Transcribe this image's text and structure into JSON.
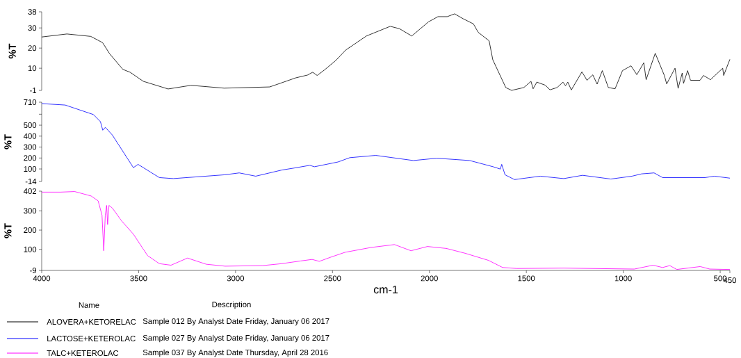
{
  "chart_data": [
    {
      "type": "line",
      "ylabel": "%T",
      "xlim": [
        4000,
        450
      ],
      "ylim": [
        -1,
        38
      ],
      "yticks": [
        38,
        30,
        20,
        10,
        -1
      ],
      "tick_labels": "y",
      "legend": "bottom",
      "legend_title": "Name",
      "annotations": [
        "Description",
        "Sample 012 By Analyst Date Friday, January 06 2017"
      ],
      "series": [
        {
          "name": "ALOVERA+KETORELAC",
          "color": "#000000",
          "x": [
            4000,
            3870,
            3747,
            3686,
            3649,
            3581,
            3544,
            3476,
            3348,
            3230,
            3059,
            2824,
            2752,
            2690,
            2629,
            2602,
            2579,
            2542,
            2481,
            2432,
            2325,
            2202,
            2154,
            2091,
            2005,
            1956,
            1908,
            1870,
            1827,
            1773,
            1748,
            1692,
            1673,
            1606,
            1576,
            1513,
            1476,
            1465,
            1446,
            1403,
            1378,
            1341,
            1311,
            1298,
            1286,
            1268,
            1213,
            1187,
            1157,
            1135,
            1108,
            1077,
            1042,
            1004,
            960,
            930,
            894,
            882,
            835,
            788,
            776,
            733,
            717,
            696,
            689,
            668,
            653,
            604,
            586,
            550,
            487,
            482,
            450
          ],
          "values": [
            25.5,
            27,
            25.8,
            22.7,
            17.1,
            9.4,
            8,
            3.5,
            -0.3,
            1.5,
            0.1,
            0.7,
            3.1,
            5.2,
            6.6,
            8,
            6.4,
            9.1,
            14,
            19,
            26,
            30.8,
            29.6,
            26,
            33,
            35.6,
            35.6,
            37,
            34.6,
            32,
            27.8,
            23.6,
            14.2,
            0.4,
            -1,
            0.4,
            3.5,
            -0.2,
            3.1,
            1.6,
            -0.7,
            0.4,
            3.1,
            1.3,
            3.1,
            -0.8,
            8.2,
            4,
            6.7,
            2.1,
            8.8,
            0.4,
            -0.2,
            8.8,
            11.2,
            6.8,
            12.7,
            4.3,
            17.4,
            6.4,
            2.2,
            10,
            0,
            7.6,
            2.5,
            8.8,
            4,
            4,
            6.4,
            4.3,
            10,
            6.4,
            14.4
          ]
        }
      ]
    },
    {
      "type": "line",
      "ylabel": "%T",
      "xlim": [
        4000,
        450
      ],
      "ylim": [
        -14,
        710
      ],
      "yticks": [
        710,
        {
          "value": 600,
          "label": null
        },
        500,
        400,
        300,
        200,
        100,
        -14
      ],
      "tick_labels": "y",
      "legend": "bottom",
      "annotations": [
        "Sample 027 By Analyst Date Friday, January 06 2017"
      ],
      "series": [
        {
          "name": "LACTOSE+KETEROLAC",
          "color": "#0000ff",
          "x": [
            4000,
            3879,
            3733,
            3697,
            3685,
            3672,
            3636,
            3527,
            3503,
            3393,
            3321,
            3054,
            2981,
            2896,
            2762,
            2702,
            2617,
            2593,
            2471,
            2411,
            2277,
            2083,
            1962,
            1792,
            1671,
            1634,
            1627,
            1610,
            1561,
            1428,
            1307,
            1210,
            1064,
            955,
            906,
            841,
            797,
            579,
            530,
            450
          ],
          "values": [
            697,
            684,
            597,
            532,
            454,
            480,
            411,
            112,
            142,
            21,
            12,
            47,
            64,
            34,
            90,
            107,
            133,
            120,
            164,
            203,
            224,
            177,
            198,
            177,
            120,
            99,
            142,
            47,
            3,
            34,
            12,
            42,
            8,
            34,
            55,
            64,
            21,
            21,
            34,
            16
          ]
        }
      ]
    },
    {
      "type": "line",
      "ylabel": "%T",
      "xlabel": "cm-1",
      "xlim": [
        4000,
        450
      ],
      "ylim": [
        -9,
        402
      ],
      "yticks": [
        402,
        300,
        200,
        100,
        -9
      ],
      "xticks": [
        4000,
        3500,
        3000,
        2500,
        2000,
        1500,
        1000,
        500,
        450
      ],
      "legend": "bottom",
      "annotations": [
        "Sample 037 By Analyst Date Thursday, April 28 2016"
      ],
      "series": [
        {
          "name": "TALC+KETEROLAC",
          "color": "#ff00ff",
          "x": [
            4000,
            3903,
            3830,
            3745,
            3709,
            3689,
            3680,
            3672,
            3665,
            3660,
            3653,
            3636,
            3588,
            3527,
            3454,
            3393,
            3333,
            3248,
            3151,
            3054,
            2860,
            2762,
            2665,
            2605,
            2568,
            2508,
            2435,
            2301,
            2180,
            2095,
            2010,
            1913,
            1816,
            1695,
            1622,
            1549,
            1307,
            943,
            846,
            797,
            760,
            724,
            603,
            554,
            450
          ],
          "values": [
            397,
            397,
            400,
            377,
            352,
            278,
            93,
            278,
            328,
            229,
            328,
            315,
            248,
            179,
            68,
            26,
            18,
            55,
            23,
            13,
            16,
            26,
            40,
            48,
            38,
            60,
            85,
            110,
            125,
            93,
            115,
            105,
            80,
            43,
            6,
            1,
            3,
            -2,
            18,
            6,
            16,
            -4,
            11,
            -2,
            -4
          ]
        }
      ]
    }
  ]
}
